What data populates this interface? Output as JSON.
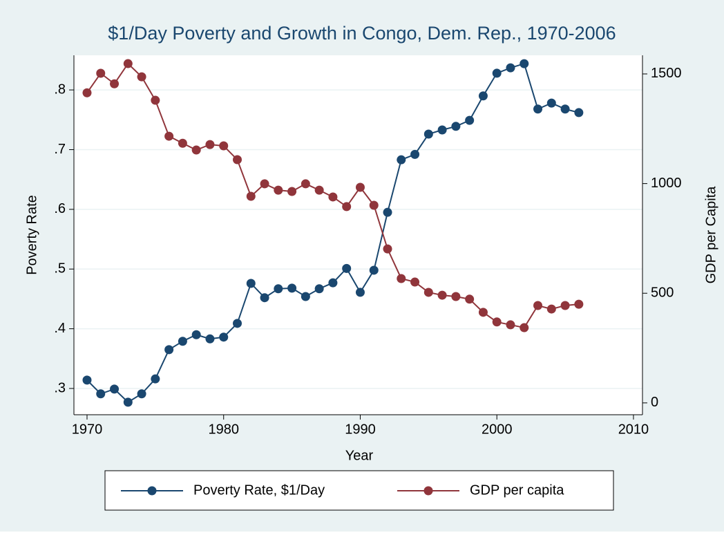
{
  "chart_data": {
    "type": "line",
    "title": "$1/Day Poverty and Growth in Congo, Dem. Rep., 1970-2006",
    "xlabel": "Year",
    "ylabel": "Poverty Rate",
    "y2label": "GDP per Capita",
    "x": [
      1970,
      1971,
      1972,
      1973,
      1974,
      1975,
      1976,
      1977,
      1978,
      1979,
      1980,
      1981,
      1982,
      1983,
      1984,
      1985,
      1986,
      1987,
      1988,
      1989,
      1990,
      1991,
      1992,
      1993,
      1994,
      1995,
      1996,
      1997,
      1998,
      1999,
      2000,
      2001,
      2002,
      2003,
      2004,
      2005,
      2006
    ],
    "series": [
      {
        "name": "Poverty Rate, $1/Day",
        "color": "#1a476f",
        "axis": "y",
        "values": [
          0.314,
          0.291,
          0.299,
          0.277,
          0.291,
          0.316,
          0.365,
          0.379,
          0.39,
          0.383,
          0.386,
          0.409,
          0.476,
          0.452,
          0.467,
          0.468,
          0.454,
          0.467,
          0.477,
          0.501,
          0.461,
          0.498,
          0.595,
          0.683,
          0.692,
          0.726,
          0.733,
          0.739,
          0.749,
          0.79,
          0.828,
          0.837,
          0.844,
          0.768,
          0.778,
          0.768,
          0.762
        ]
      },
      {
        "name": "GDP per capita",
        "color": "#90353b",
        "axis": "y2",
        "values": [
          1414,
          1503,
          1455,
          1547,
          1487,
          1380,
          1216,
          1184,
          1153,
          1178,
          1172,
          1109,
          942,
          999,
          970,
          964,
          999,
          970,
          939,
          895,
          983,
          901,
          702,
          567,
          551,
          504,
          491,
          485,
          473,
          413,
          369,
          356,
          343,
          444,
          428,
          444,
          450
        ]
      }
    ],
    "xlim": [
      1969.04,
      2010.66
    ],
    "xticks": [
      1970,
      1980,
      1990,
      2000,
      2010
    ],
    "ylim": [
      0.256,
      0.858
    ],
    "yticks": [
      {
        "value": 0.3,
        "label": ".3"
      },
      {
        "value": 0.4,
        "label": ".4"
      },
      {
        "value": 0.5,
        "label": ".5"
      },
      {
        "value": 0.6,
        "label": ".6"
      },
      {
        "value": 0.7,
        "label": ".7"
      },
      {
        "value": 0.8,
        "label": ".8"
      }
    ],
    "y2lim": [
      -54,
      1585
    ],
    "y2ticks": [
      0,
      500,
      1000,
      1500
    ],
    "grid": true,
    "legend": "bottom"
  }
}
